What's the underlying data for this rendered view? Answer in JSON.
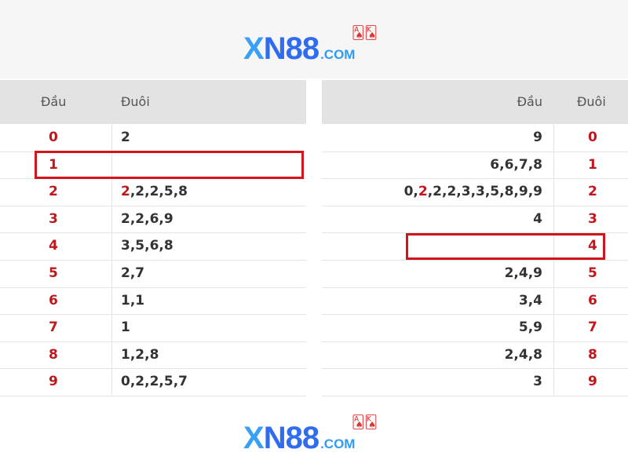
{
  "logo": {
    "main_x": "X",
    "main_rest": "N88",
    "suffix": ".COM",
    "cards": "🂡🂮"
  },
  "left_table": {
    "headers": {
      "dau": "Đầu",
      "duoi": "Đuôi"
    },
    "rows": [
      {
        "dau": "0",
        "duoi_first": "",
        "duoi": "2"
      },
      {
        "dau": "1",
        "duoi_first": "",
        "duoi": "",
        "highlighted": true
      },
      {
        "dau": "2",
        "duoi_first": "2",
        "duoi": ",2,2,5,8"
      },
      {
        "dau": "3",
        "duoi_first": "",
        "duoi": "2,2,6,9"
      },
      {
        "dau": "4",
        "duoi_first": "",
        "duoi": "3,5,6,8"
      },
      {
        "dau": "5",
        "duoi_first": "",
        "duoi": "2,7"
      },
      {
        "dau": "6",
        "duoi_first": "",
        "duoi": "1,1"
      },
      {
        "dau": "7",
        "duoi_first": "",
        "duoi": "1"
      },
      {
        "dau": "8",
        "duoi_first": "",
        "duoi": "1,2,8"
      },
      {
        "dau": "9",
        "duoi_first": "",
        "duoi": "0,2,2,5,7"
      }
    ]
  },
  "right_table": {
    "headers": {
      "dau": "Đầu",
      "duoi": "Đuôi"
    },
    "rows": [
      {
        "dau_first": "",
        "dau_second": "",
        "dau": "9",
        "duoi": "0"
      },
      {
        "dau_first": "",
        "dau_second": "",
        "dau": "6,6,7,8",
        "duoi": "1"
      },
      {
        "dau_first": "0,",
        "dau_second": "2",
        "dau": ",2,2,3,3,5,8,9,9",
        "duoi": "2"
      },
      {
        "dau_first": "",
        "dau_second": "",
        "dau": "4",
        "duoi": "3"
      },
      {
        "dau_first": "",
        "dau_second": "",
        "dau": "",
        "duoi": "4",
        "highlighted": true
      },
      {
        "dau_first": "",
        "dau_second": "",
        "dau": "2,4,9",
        "duoi": "5"
      },
      {
        "dau_first": "",
        "dau_second": "",
        "dau": "3,4",
        "duoi": "6"
      },
      {
        "dau_first": "",
        "dau_second": "",
        "dau": "5,9",
        "duoi": "7"
      },
      {
        "dau_first": "",
        "dau_second": "",
        "dau": "2,4,8",
        "duoi": "8"
      },
      {
        "dau_first": "",
        "dau_second": "",
        "dau": "3",
        "duoi": "9"
      }
    ]
  },
  "colors": {
    "highlight": "#d0161c",
    "number_red": "#c0171d",
    "header_bg": "#e3e3e3"
  }
}
